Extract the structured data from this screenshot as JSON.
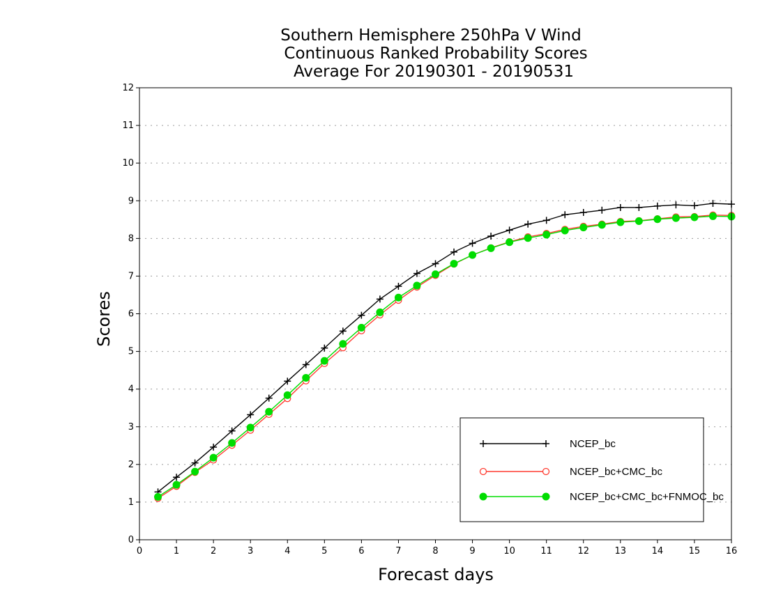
{
  "chart_data": {
    "type": "line",
    "title": [
      "Southern Hemisphere 250hPa V Wind",
      "Continuous Ranked Probability Scores",
      "Average For 20190301 - 20190531"
    ],
    "xlabel": "Forecast days",
    "ylabel": "Scores",
    "xlim": [
      0,
      16
    ],
    "ylim": [
      0,
      12
    ],
    "xticks": [
      0,
      1,
      2,
      3,
      4,
      5,
      6,
      7,
      8,
      9,
      10,
      11,
      12,
      13,
      14,
      15,
      16
    ],
    "yticks": [
      0,
      1,
      2,
      3,
      4,
      5,
      6,
      7,
      8,
      9,
      10,
      11,
      12
    ],
    "grid": "horizontal dotted",
    "legend_position": "bottom-right",
    "x": [
      0.5,
      1,
      1.5,
      2,
      2.5,
      3,
      3.5,
      4,
      4.5,
      5,
      5.5,
      6,
      6.5,
      7,
      7.5,
      8,
      8.5,
      9,
      9.5,
      10,
      10.5,
      11,
      11.5,
      12,
      12.5,
      13,
      13.5,
      14,
      14.5,
      15,
      15.5,
      16
    ],
    "series": [
      {
        "name": "NCEP_bc",
        "color": "#000000",
        "marker": "plus",
        "values": [
          1.27,
          1.66,
          2.04,
          2.46,
          2.89,
          3.32,
          3.76,
          4.21,
          4.65,
          5.09,
          5.54,
          5.96,
          6.39,
          6.73,
          7.07,
          7.33,
          7.64,
          7.87,
          8.06,
          8.22,
          8.38,
          8.48,
          8.63,
          8.69,
          8.75,
          8.82,
          8.82,
          8.86,
          8.89,
          8.87,
          8.93,
          8.91
        ]
      },
      {
        "name": "NCEP_bc+CMC_bc",
        "color": "#ff3b30",
        "marker": "open-circle",
        "values": [
          1.1,
          1.42,
          1.79,
          2.12,
          2.51,
          2.91,
          3.33,
          3.75,
          4.22,
          4.68,
          5.1,
          5.55,
          5.97,
          6.36,
          6.71,
          7.02,
          7.32,
          7.56,
          7.75,
          7.91,
          8.04,
          8.13,
          8.24,
          8.32,
          8.38,
          8.45,
          8.47,
          8.52,
          8.57,
          8.58,
          8.62,
          8.61
        ]
      },
      {
        "name": "NCEP_bc+CMC_bc+FNMOC_bc",
        "color": "#00dd00",
        "marker": "filled-circle",
        "values": [
          1.14,
          1.46,
          1.81,
          2.18,
          2.57,
          2.98,
          3.4,
          3.84,
          4.3,
          4.75,
          5.2,
          5.63,
          6.04,
          6.43,
          6.75,
          7.05,
          7.33,
          7.56,
          7.74,
          7.9,
          8.01,
          8.1,
          8.21,
          8.29,
          8.36,
          8.43,
          8.46,
          8.51,
          8.54,
          8.56,
          8.59,
          8.58
        ]
      }
    ]
  }
}
